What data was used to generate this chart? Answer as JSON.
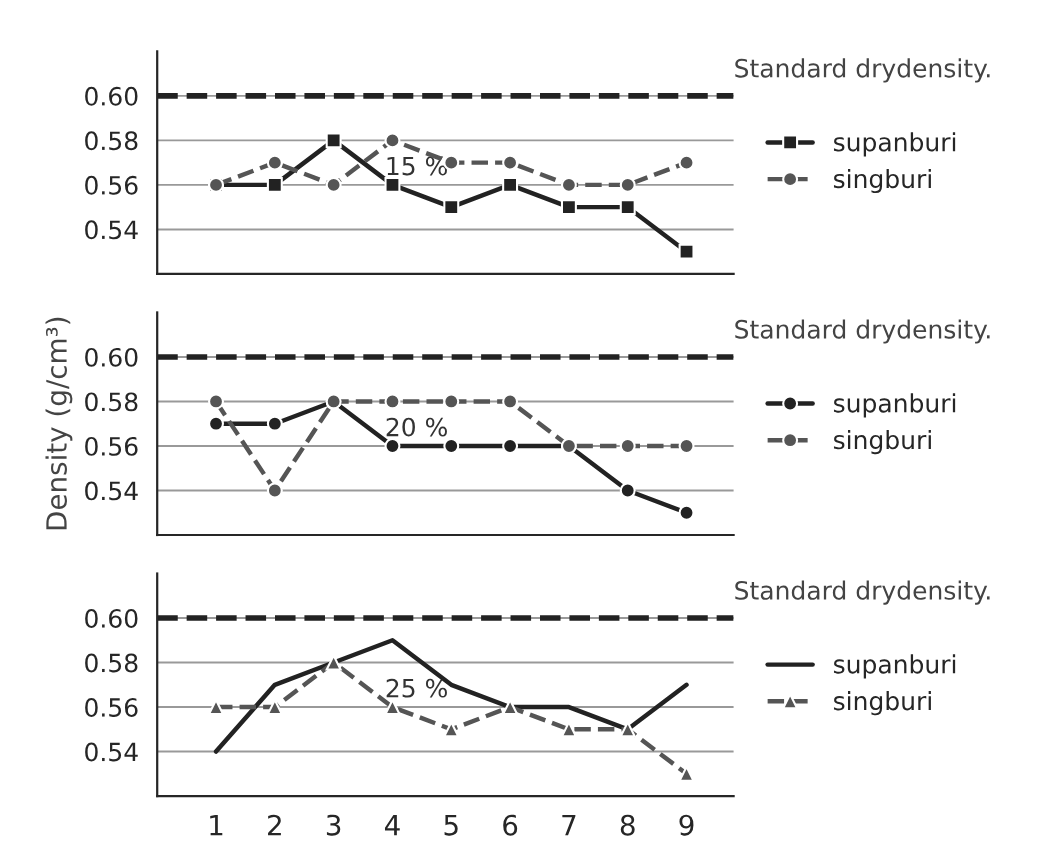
{
  "chart_data": [
    {
      "type": "line",
      "x": [
        1,
        2,
        3,
        4,
        5,
        6,
        7,
        8,
        9
      ],
      "xlim": [
        0,
        9.8
      ],
      "ylim": [
        0.52,
        0.62
      ],
      "yticks": [
        {
          "value": 0.54,
          "label": "0.54"
        },
        {
          "value": 0.56,
          "label": "0.56"
        },
        {
          "value": 0.58,
          "label": "0.58"
        },
        {
          "value": 0.6,
          "label": "0.60"
        }
      ],
      "tick_labels": "y",
      "grid": "y",
      "legend": "right",
      "series": [
        {
          "name": "supanburi",
          "color": "#222222",
          "marker": "square",
          "line_style": "solid",
          "values": [
            0.56,
            0.56,
            0.58,
            0.56,
            0.55,
            0.56,
            0.55,
            0.55,
            0.53
          ]
        },
        {
          "name": "singburi",
          "color": "#555555",
          "marker": "circle",
          "line_style": "dashed",
          "values": [
            0.56,
            0.57,
            0.56,
            0.58,
            0.57,
            0.57,
            0.56,
            0.56,
            0.57
          ]
        }
      ],
      "ref_lines": [
        {
          "axis": "y",
          "value": 0.6,
          "label": "Standard drydensity.",
          "line_style": "dashed",
          "color": "#222222"
        }
      ],
      "annotations": [
        "15 %"
      ]
    },
    {
      "type": "line",
      "x": [
        1,
        2,
        3,
        4,
        5,
        6,
        7,
        8,
        9
      ],
      "xlim": [
        0,
        9.8
      ],
      "ylim": [
        0.52,
        0.62
      ],
      "yticks": [
        {
          "value": 0.54,
          "label": "0.54"
        },
        {
          "value": 0.56,
          "label": "0.56"
        },
        {
          "value": 0.58,
          "label": "0.58"
        },
        {
          "value": 0.6,
          "label": "0.60"
        }
      ],
      "tick_labels": "y",
      "grid": "y",
      "legend": "right",
      "ylabel": "Density (g/cm³)",
      "series": [
        {
          "name": "supanburi",
          "color": "#222222",
          "marker": "circle",
          "line_style": "solid",
          "values": [
            0.57,
            0.57,
            0.58,
            0.56,
            0.56,
            0.56,
            0.56,
            0.54,
            0.53
          ]
        },
        {
          "name": "singburi",
          "color": "#555555",
          "marker": "circle",
          "line_style": "dashed",
          "values": [
            0.58,
            0.54,
            0.58,
            0.58,
            0.58,
            0.58,
            0.56,
            0.56,
            0.56
          ]
        }
      ],
      "ref_lines": [
        {
          "axis": "y",
          "value": 0.6,
          "label": "Standard drydensity.",
          "line_style": "dashed",
          "color": "#222222"
        }
      ],
      "annotations": [
        "20 %"
      ]
    },
    {
      "type": "line",
      "x": [
        1,
        2,
        3,
        4,
        5,
        6,
        7,
        8,
        9
      ],
      "xlim": [
        0,
        9.8
      ],
      "ylim": [
        0.52,
        0.62
      ],
      "xticks": [
        1,
        2,
        3,
        4,
        5,
        6,
        7,
        8,
        9
      ],
      "yticks": [
        {
          "value": 0.54,
          "label": "0.54"
        },
        {
          "value": 0.56,
          "label": "0.56"
        },
        {
          "value": 0.58,
          "label": "0.58"
        },
        {
          "value": 0.6,
          "label": "0.60"
        }
      ],
      "grid": "y",
      "legend": "right",
      "series": [
        {
          "name": "supanburi",
          "color": "#222222",
          "marker": "none",
          "line_style": "solid",
          "values": [
            0.54,
            0.57,
            0.58,
            0.59,
            0.57,
            0.56,
            0.56,
            0.55,
            0.57
          ]
        },
        {
          "name": "singburi",
          "color": "#555555",
          "marker": "triangle",
          "line_style": "dashed",
          "values": [
            0.56,
            0.56,
            0.58,
            0.56,
            0.55,
            0.56,
            0.55,
            0.55,
            0.53
          ]
        }
      ],
      "ref_lines": [
        {
          "axis": "y",
          "value": 0.6,
          "label": "Standard drydensity.",
          "line_style": "dashed",
          "color": "#222222"
        }
      ],
      "annotations": [
        "25 %"
      ]
    }
  ]
}
